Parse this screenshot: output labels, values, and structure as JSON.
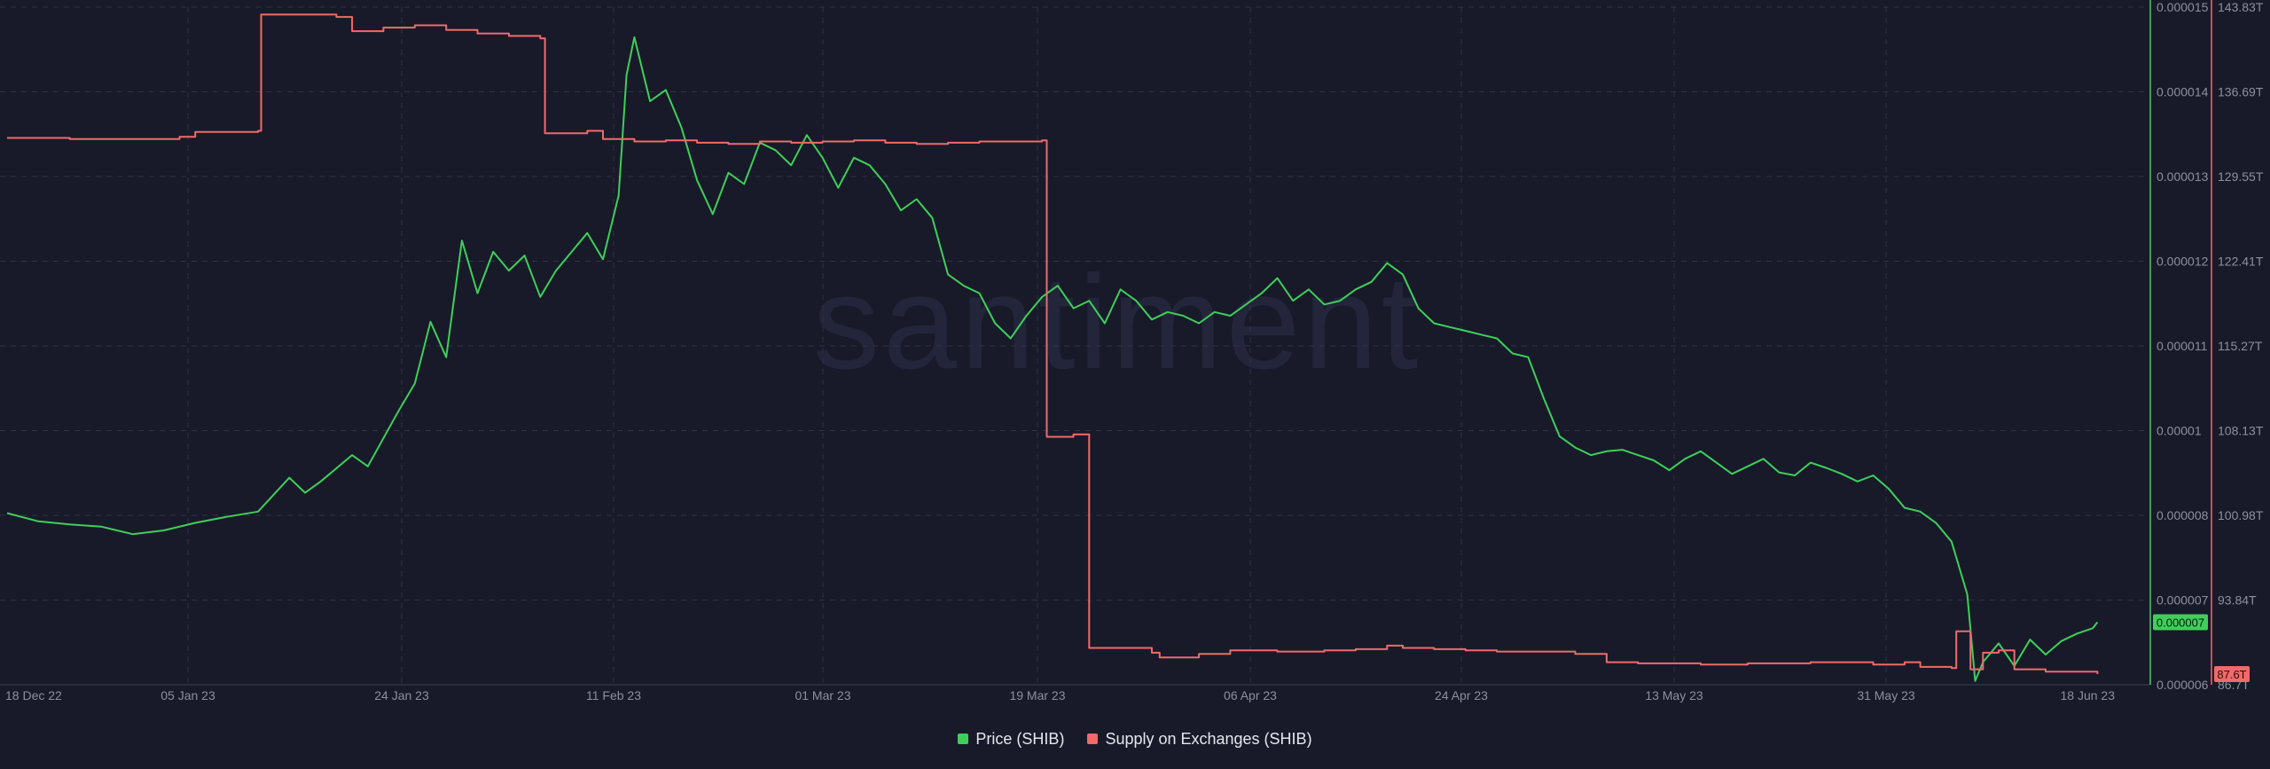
{
  "chart_data": {
    "type": "line",
    "watermark": "santiment",
    "colors": {
      "price": "#3ecf5a",
      "supply": "#f06a6a",
      "background": "#181a29",
      "grid": "#2f3346",
      "axis_text": "#8c8fa0"
    },
    "x_axis": {
      "ticks": [
        "18 Dec 22",
        "05 Jan 23",
        "24 Jan 23",
        "11 Feb 23",
        "01 Mar 23",
        "19 Mar 23",
        "06 Apr 23",
        "24 Apr 23",
        "13 May 23",
        "31 May 23",
        "18 Jun 23"
      ]
    },
    "y_axis_left": {
      "label": "Price (SHIB)",
      "ticks": [
        "0.000015",
        "0.000014",
        "0.000013",
        "0.000012",
        "0.000011",
        "0.00001",
        "0.000008",
        "0.000007",
        "0.000006"
      ]
    },
    "y_axis_right": {
      "label": "Supply on Exchanges (SHIB)",
      "ticks": [
        "143.83T",
        "136.69T",
        "129.55T",
        "122.41T",
        "115.27T",
        "108.13T",
        "100.98T",
        "93.84T",
        "86.7T"
      ]
    },
    "current_values": {
      "price": "0.000007",
      "supply": "87.6T"
    },
    "series": [
      {
        "name": "Price (SHIB)",
        "color": "#3ecf5a",
        "axis": "left",
        "points": [
          [
            0,
            8.28e-06
          ],
          [
            2,
            8.17e-06
          ],
          [
            4,
            8.13e-06
          ],
          [
            6,
            8.1e-06
          ],
          [
            8,
            8e-06
          ],
          [
            10,
            8.05e-06
          ],
          [
            12,
            8.15e-06
          ],
          [
            14,
            8.23e-06
          ],
          [
            16,
            8.3e-06
          ],
          [
            18,
            8.75e-06
          ],
          [
            19,
            8.55e-06
          ],
          [
            20,
            8.7e-06
          ],
          [
            22,
            9.05e-06
          ],
          [
            23,
            8.9e-06
          ],
          [
            25,
            9.65e-06
          ],
          [
            26,
            1e-05
          ],
          [
            27,
            1.082e-05
          ],
          [
            28,
            1.035e-05
          ],
          [
            29,
            1.19e-05
          ],
          [
            30,
            1.12e-05
          ],
          [
            31,
            1.175e-05
          ],
          [
            32,
            1.15e-05
          ],
          [
            33,
            1.17e-05
          ],
          [
            34,
            1.115e-05
          ],
          [
            35,
            1.15e-05
          ],
          [
            36,
            1.175e-05
          ],
          [
            37,
            1.2e-05
          ],
          [
            38,
            1.165e-05
          ],
          [
            39,
            1.25e-05
          ],
          [
            39.5,
            1.41e-05
          ],
          [
            40,
            1.46e-05
          ],
          [
            41,
            1.375e-05
          ],
          [
            42,
            1.39e-05
          ],
          [
            43,
            1.34e-05
          ],
          [
            44,
            1.27e-05
          ],
          [
            45,
            1.225e-05
          ],
          [
            46,
            1.28e-05
          ],
          [
            47,
            1.265e-05
          ],
          [
            48,
            1.32e-05
          ],
          [
            49,
            1.31e-05
          ],
          [
            50,
            1.29e-05
          ],
          [
            51,
            1.33e-05
          ],
          [
            52,
            1.3e-05
          ],
          [
            53,
            1.26e-05
          ],
          [
            54,
            1.3e-05
          ],
          [
            55,
            1.29e-05
          ],
          [
            56,
            1.265e-05
          ],
          [
            57,
            1.23e-05
          ],
          [
            58,
            1.245e-05
          ],
          [
            59,
            1.22e-05
          ],
          [
            60,
            1.145e-05
          ],
          [
            61,
            1.13e-05
          ],
          [
            62,
            1.12e-05
          ],
          [
            63,
            1.08e-05
          ],
          [
            64,
            1.06e-05
          ],
          [
            65,
            1.09e-05
          ],
          [
            66,
            1.115e-05
          ],
          [
            67,
            1.13e-05
          ],
          [
            68,
            1.1e-05
          ],
          [
            69,
            1.11e-05
          ],
          [
            70,
            1.08e-05
          ],
          [
            71,
            1.125e-05
          ],
          [
            72,
            1.11e-05
          ],
          [
            73,
            1.085e-05
          ],
          [
            74,
            1.095e-05
          ],
          [
            75,
            1.09e-05
          ],
          [
            76,
            1.08e-05
          ],
          [
            77,
            1.095e-05
          ],
          [
            78,
            1.09e-05
          ],
          [
            79,
            1.105e-05
          ],
          [
            80,
            1.12e-05
          ],
          [
            81,
            1.14e-05
          ],
          [
            82,
            1.11e-05
          ],
          [
            83,
            1.125e-05
          ],
          [
            84,
            1.105e-05
          ],
          [
            85,
            1.11e-05
          ],
          [
            86,
            1.125e-05
          ],
          [
            87,
            1.135e-05
          ],
          [
            88,
            1.16e-05
          ],
          [
            89,
            1.145e-05
          ],
          [
            90,
            1.1e-05
          ],
          [
            91,
            1.08e-05
          ],
          [
            92,
            1.075e-05
          ],
          [
            93,
            1.07e-05
          ],
          [
            94,
            1.065e-05
          ],
          [
            95,
            1.06e-05
          ],
          [
            96,
            1.04e-05
          ],
          [
            97,
            1.035e-05
          ],
          [
            98,
            9.8e-06
          ],
          [
            99,
            9.3e-06
          ],
          [
            100,
            9.15e-06
          ],
          [
            101,
            9.05e-06
          ],
          [
            102,
            9.1e-06
          ],
          [
            103,
            9.12e-06
          ],
          [
            104,
            9.05e-06
          ],
          [
            105,
            8.98e-06
          ],
          [
            106,
            8.85e-06
          ],
          [
            107,
            9e-06
          ],
          [
            108,
            9.1e-06
          ],
          [
            109,
            8.95e-06
          ],
          [
            110,
            8.8e-06
          ],
          [
            111,
            8.9e-06
          ],
          [
            112,
            9e-06
          ],
          [
            113,
            8.82e-06
          ],
          [
            114,
            8.78e-06
          ],
          [
            115,
            8.95e-06
          ],
          [
            116,
            8.88e-06
          ],
          [
            117,
            8.8e-06
          ],
          [
            118,
            8.7e-06
          ],
          [
            119,
            8.78e-06
          ],
          [
            120,
            8.6e-06
          ],
          [
            121,
            8.35e-06
          ],
          [
            122,
            8.3e-06
          ],
          [
            123,
            8.15e-06
          ],
          [
            124,
            7.9e-06
          ],
          [
            125,
            7.2e-06
          ],
          [
            125.5,
            6.05e-06
          ],
          [
            126,
            6.3e-06
          ],
          [
            127,
            6.55e-06
          ],
          [
            128,
            6.25e-06
          ],
          [
            129,
            6.6e-06
          ],
          [
            130,
            6.4e-06
          ],
          [
            131,
            6.58e-06
          ],
          [
            132,
            6.68e-06
          ],
          [
            133,
            6.75e-06
          ],
          [
            133.3,
            6.83e-06
          ]
        ]
      },
      {
        "name": "Supply on Exchanges (SHIB)",
        "color": "#f06a6a",
        "axis": "right",
        "points": [
          [
            0,
            132.8
          ],
          [
            4,
            132.7
          ],
          [
            8,
            132.7
          ],
          [
            11,
            132.9
          ],
          [
            12,
            133.3
          ],
          [
            16,
            133.4
          ],
          [
            16.2,
            143.2
          ],
          [
            21,
            143.0
          ],
          [
            22,
            141.8
          ],
          [
            24,
            142.1
          ],
          [
            26,
            142.3
          ],
          [
            28,
            141.9
          ],
          [
            30,
            141.6
          ],
          [
            32,
            141.4
          ],
          [
            34,
            141.2
          ],
          [
            34.3,
            133.2
          ],
          [
            37,
            133.4
          ],
          [
            38,
            132.7
          ],
          [
            40,
            132.5
          ],
          [
            42,
            132.6
          ],
          [
            44,
            132.4
          ],
          [
            46,
            132.3
          ],
          [
            48,
            132.5
          ],
          [
            50,
            132.4
          ],
          [
            52,
            132.5
          ],
          [
            54,
            132.6
          ],
          [
            56,
            132.4
          ],
          [
            58,
            132.3
          ],
          [
            60,
            132.4
          ],
          [
            62,
            132.5
          ],
          [
            66,
            132.6
          ],
          [
            66.3,
            107.6
          ],
          [
            68,
            107.8
          ],
          [
            68.8,
            107.8
          ],
          [
            69,
            89.8
          ],
          [
            71,
            89.8
          ],
          [
            73,
            89.4
          ],
          [
            73.5,
            89.0
          ],
          [
            76,
            89.3
          ],
          [
            78,
            89.6
          ],
          [
            81,
            89.5
          ],
          [
            84,
            89.6
          ],
          [
            86,
            89.7
          ],
          [
            88,
            90.0
          ],
          [
            89,
            89.8
          ],
          [
            91,
            89.7
          ],
          [
            93,
            89.6
          ],
          [
            95,
            89.5
          ],
          [
            98,
            89.5
          ],
          [
            100,
            89.3
          ],
          [
            102,
            88.6
          ],
          [
            104,
            88.5
          ],
          [
            108,
            88.4
          ],
          [
            111,
            88.5
          ],
          [
            115,
            88.6
          ],
          [
            119,
            88.4
          ],
          [
            121,
            88.6
          ],
          [
            122,
            88.2
          ],
          [
            124,
            88.1
          ],
          [
            124.3,
            91.2
          ],
          [
            124.8,
            91.2
          ],
          [
            125.2,
            88.0
          ],
          [
            126,
            89.4
          ],
          [
            127,
            89.6
          ],
          [
            128,
            88.0
          ],
          [
            130,
            87.8
          ],
          [
            133.3,
            87.6
          ]
        ]
      }
    ]
  },
  "legend": {
    "items": [
      {
        "label": "Price (SHIB)",
        "color": "#3ecf5a"
      },
      {
        "label": "Supply on Exchanges (SHIB)",
        "color": "#f06a6a"
      }
    ]
  }
}
